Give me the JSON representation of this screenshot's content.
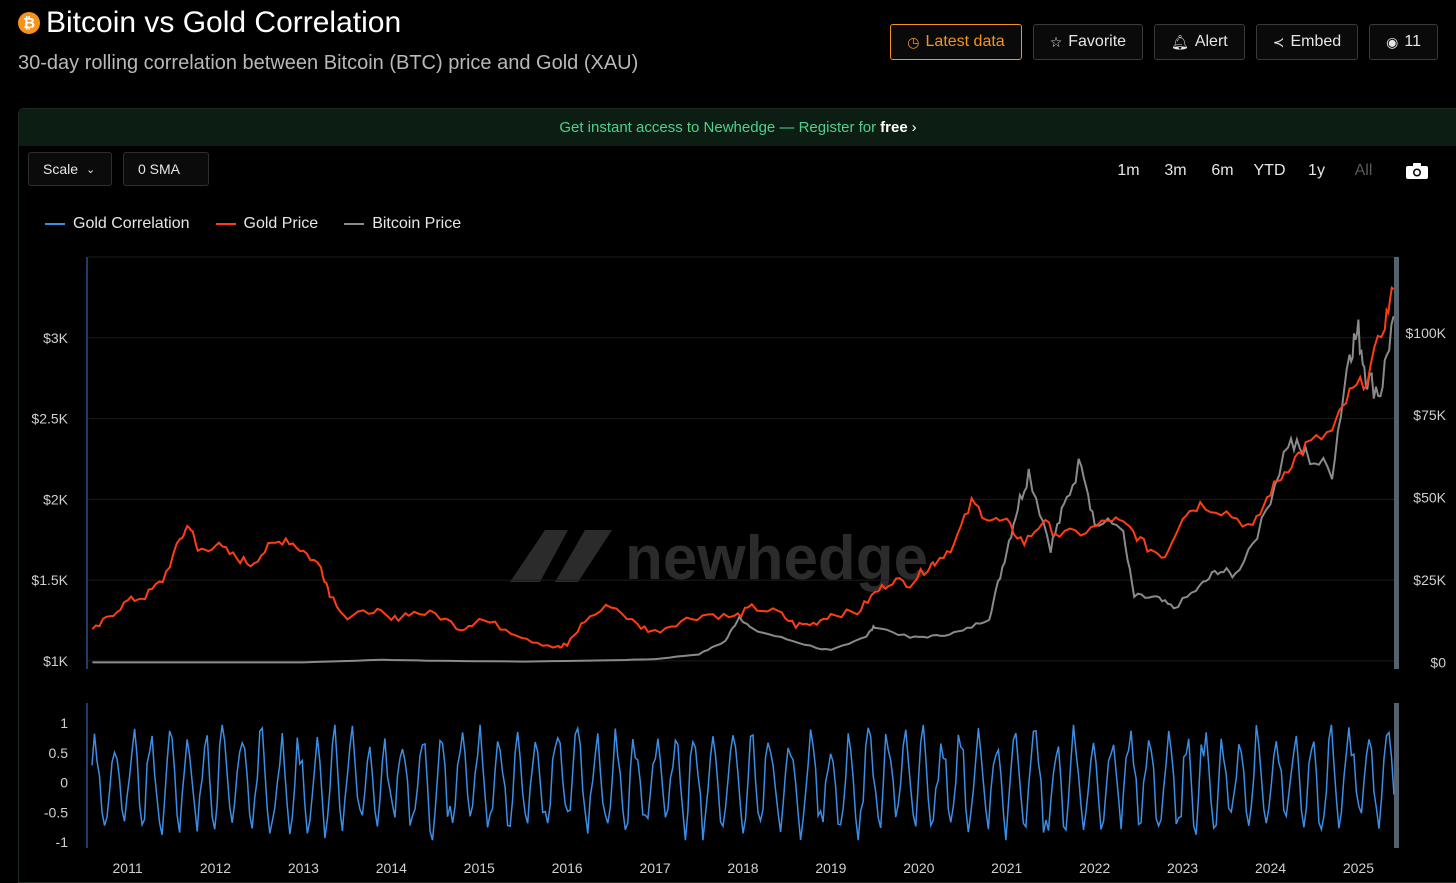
{
  "header": {
    "title": "Bitcoin vs Gold Correlation",
    "subtitle": "30-day rolling correlation between Bitcoin (BTC) price and Gold (XAU)",
    "coin_glyph": "₿",
    "actions": [
      {
        "label": "Latest data",
        "icon": "clock-icon"
      },
      {
        "label": "Favorite",
        "icon": "star-icon"
      },
      {
        "label": "Alert",
        "icon": "bell-icon"
      },
      {
        "label": "Embed",
        "icon": "share-icon"
      },
      {
        "label": "11",
        "icon": "eye-icon"
      }
    ]
  },
  "banner": {
    "text": "Get instant access to Newhedge — Register for",
    "bold": "free"
  },
  "controls": {
    "scale_label": "Scale",
    "sma_label": "0 SMA",
    "ranges": [
      "1m",
      "3m",
      "6m",
      "YTD",
      "1y",
      "All"
    ],
    "camera_icon": "camera-icon"
  },
  "watermark": "newhedge",
  "colors": {
    "gold": "#ff3d12",
    "bitcoin": "#8a8a8a",
    "correlation": "#3a8ee6",
    "accent": "#f7931a",
    "banner_text": "#4fd18b"
  },
  "chart_data": [
    {
      "type": "line",
      "legend": [
        "Gold Correlation",
        "Gold Price",
        "Bitcoin Price"
      ],
      "x_ticks": [
        "2011",
        "2012",
        "2013",
        "2014",
        "2015",
        "2016",
        "2017",
        "2018",
        "2019",
        "2020",
        "2021",
        "2022",
        "2023",
        "2024",
        "2025"
      ],
      "xlim": [
        2010.55,
        2025.45
      ],
      "left_axis": {
        "ticks": [
          "$1K",
          "$1.5K",
          "$2K",
          "$2.5K",
          "$3K"
        ],
        "tick_values": [
          1000,
          1500,
          2000,
          2500,
          3000
        ],
        "ylim": [
          950,
          3500
        ]
      },
      "right_axis": {
        "ticks": [
          "$0",
          "$25K",
          "$50K",
          "$75K",
          "$100K"
        ],
        "tick_values": [
          0,
          25000,
          50000,
          75000,
          100000
        ],
        "ylim": [
          -2000,
          123000
        ]
      },
      "series": [
        {
          "name": "Gold Price",
          "axis": "left",
          "x": [
            2010.6,
            2010.8,
            2011.0,
            2011.2,
            2011.4,
            2011.6,
            2011.7,
            2011.8,
            2012.0,
            2012.2,
            2012.4,
            2012.6,
            2012.8,
            2013.0,
            2013.2,
            2013.3,
            2013.5,
            2013.8,
            2014.0,
            2014.2,
            2014.5,
            2014.8,
            2015.0,
            2015.3,
            2015.6,
            2015.9,
            2016.0,
            2016.2,
            2016.5,
            2016.8,
            2017.0,
            2017.3,
            2017.6,
            2017.9,
            2018.1,
            2018.4,
            2018.6,
            2018.8,
            2019.0,
            2019.3,
            2019.5,
            2019.7,
            2019.9,
            2020.1,
            2020.2,
            2020.4,
            2020.6,
            2020.8,
            2021.0,
            2021.2,
            2021.4,
            2021.6,
            2021.9,
            2022.2,
            2022.4,
            2022.6,
            2022.8,
            2023.0,
            2023.2,
            2023.5,
            2023.8,
            2024.0,
            2024.2,
            2024.4,
            2024.7,
            2024.9,
            2025.1,
            2025.3,
            2025.4
          ],
          "values": [
            1180,
            1280,
            1370,
            1400,
            1500,
            1750,
            1850,
            1680,
            1720,
            1650,
            1600,
            1700,
            1760,
            1680,
            1580,
            1420,
            1260,
            1320,
            1250,
            1300,
            1290,
            1200,
            1260,
            1200,
            1130,
            1080,
            1100,
            1250,
            1350,
            1220,
            1180,
            1250,
            1290,
            1270,
            1330,
            1300,
            1220,
            1230,
            1290,
            1300,
            1420,
            1500,
            1480,
            1580,
            1620,
            1720,
            1980,
            1880,
            1850,
            1730,
            1860,
            1780,
            1800,
            1880,
            1820,
            1700,
            1650,
            1900,
            1970,
            1920,
            1820,
            2050,
            2200,
            2330,
            2420,
            2650,
            2750,
            3100,
            3300
          ]
        },
        {
          "name": "Bitcoin Price",
          "axis": "right",
          "x": [
            2010.6,
            2013.0,
            2013.9,
            2014.5,
            2015.5,
            2016.5,
            2017.0,
            2017.5,
            2017.8,
            2017.96,
            2018.1,
            2018.5,
            2018.9,
            2019.0,
            2019.4,
            2019.5,
            2019.9,
            2020.2,
            2020.5,
            2020.8,
            2020.95,
            2021.1,
            2021.25,
            2021.5,
            2021.65,
            2021.85,
            2022.0,
            2022.3,
            2022.45,
            2022.7,
            2022.9,
            2023.2,
            2023.4,
            2023.6,
            2023.9,
            2024.2,
            2024.4,
            2024.7,
            2024.9,
            2025.0,
            2025.1,
            2025.25,
            2025.4
          ],
          "values": [
            0,
            13,
            800,
            500,
            250,
            650,
            1000,
            2500,
            6500,
            14000,
            10000,
            7000,
            4000,
            3700,
            8000,
            11000,
            7500,
            8000,
            9500,
            13500,
            29000,
            45000,
            58000,
            35000,
            47000,
            62000,
            42000,
            42000,
            20000,
            19500,
            16500,
            23000,
            28000,
            26500,
            42000,
            67000,
            63000,
            58000,
            95000,
            100000,
            86000,
            82000,
            105000
          ]
        }
      ]
    },
    {
      "type": "line",
      "series": [
        {
          "name": "Gold Correlation"
        }
      ],
      "x_ticks": [
        "2011",
        "2012",
        "2013",
        "2014",
        "2015",
        "2016",
        "2017",
        "2018",
        "2019",
        "2020",
        "2021",
        "2022",
        "2023",
        "2024",
        "2025"
      ],
      "y_ticks": [
        "1",
        "0.5",
        "0",
        "-0.5",
        "-1"
      ],
      "ylim": [
        -1,
        1
      ],
      "note": "oscillating 30-day rolling correlation between -1 and 1"
    }
  ]
}
